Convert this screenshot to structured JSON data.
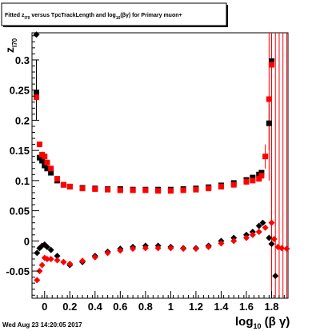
{
  "chart_data": {
    "type": "scatter",
    "title": {
      "prefix": "Fitted  z",
      "prefix_sub": "I70",
      "middle": " versus TpcTrackLength and log",
      "middle_sub": "10",
      "suffix": "(βγ) for Primary muon+"
    },
    "xlabel": {
      "main": "log",
      "sub": "10",
      "rest": " (β γ)"
    },
    "ylabel": {
      "main": "z",
      "sub": "I70"
    },
    "xlim": [
      -0.1,
      1.93
    ],
    "ylim": [
      -0.095,
      0.345
    ],
    "x_ticks": [
      0,
      0.2,
      0.4,
      0.6,
      0.8,
      1,
      1.2,
      1.4,
      1.6,
      1.8
    ],
    "x_tick_labels": [
      "0",
      "0.2",
      "0.4",
      "0.6",
      "0.8",
      "1",
      "1.2",
      "1.4",
      "1.6",
      "1.8"
    ],
    "y_ticks": [
      -0.05,
      0,
      0.05,
      0.1,
      0.15,
      0.2,
      0.25,
      0.3
    ],
    "y_tick_labels": [
      "-0.05",
      "0",
      "0.05",
      "0.1",
      "0.15",
      "0.2",
      "0.25",
      "0.3"
    ],
    "footer": "Wed Aug 23 14:20:05 2017",
    "colors": {
      "black": "#000000",
      "red": "#ff0000"
    },
    "series": [
      {
        "color": "black",
        "marker": "square",
        "points": [
          [
            -0.065,
            0.245
          ],
          [
            -0.04,
            0.138
          ],
          [
            -0.02,
            0.133
          ],
          [
            0.0,
            0.125
          ],
          [
            0.02,
            0.12
          ],
          [
            0.05,
            0.113
          ],
          [
            0.1,
            0.1
          ],
          [
            0.15,
            0.093
          ],
          [
            0.2,
            0.09
          ],
          [
            0.3,
            0.088
          ],
          [
            0.4,
            0.087
          ],
          [
            0.5,
            0.086
          ],
          [
            0.6,
            0.086
          ],
          [
            0.7,
            0.085
          ],
          [
            0.8,
            0.085
          ],
          [
            0.9,
            0.085
          ],
          [
            1.0,
            0.085
          ],
          [
            1.1,
            0.086
          ],
          [
            1.2,
            0.087
          ],
          [
            1.3,
            0.089
          ],
          [
            1.4,
            0.092
          ],
          [
            1.5,
            0.096
          ],
          [
            1.6,
            0.101
          ],
          [
            1.65,
            0.105
          ],
          [
            1.7,
            0.11
          ],
          [
            1.72,
            0.113
          ],
          [
            1.78,
            0.195
          ],
          [
            1.8,
            0.298
          ]
        ]
      },
      {
        "color": "red",
        "marker": "square",
        "points": [
          [
            -0.065,
            0.238
          ],
          [
            -0.04,
            0.16
          ],
          [
            -0.02,
            0.143
          ],
          [
            0.0,
            0.14
          ],
          [
            0.02,
            0.13
          ],
          [
            0.05,
            0.12
          ],
          [
            0.1,
            0.103
          ],
          [
            0.15,
            0.093
          ],
          [
            0.2,
            0.09
          ],
          [
            0.3,
            0.087
          ],
          [
            0.4,
            0.086
          ],
          [
            0.5,
            0.085
          ],
          [
            0.6,
            0.084
          ],
          [
            0.7,
            0.084
          ],
          [
            0.8,
            0.084
          ],
          [
            0.9,
            0.083
          ],
          [
            1.0,
            0.083
          ],
          [
            1.1,
            0.084
          ],
          [
            1.2,
            0.085
          ],
          [
            1.3,
            0.087
          ],
          [
            1.4,
            0.09
          ],
          [
            1.5,
            0.093
          ],
          [
            1.6,
            0.098
          ],
          [
            1.65,
            0.1
          ],
          [
            1.7,
            0.103
          ],
          [
            1.72,
            0.108
          ],
          [
            1.75,
            0.14
          ],
          [
            1.78,
            0.235
          ],
          [
            1.8,
            0.292
          ]
        ]
      },
      {
        "color": "black",
        "marker": "diamond",
        "points": [
          [
            -0.065,
            0.342
          ],
          [
            -0.06,
            -0.02
          ],
          [
            -0.04,
            -0.012
          ],
          [
            -0.02,
            -0.008
          ],
          [
            0.0,
            -0.006
          ],
          [
            0.02,
            -0.01
          ],
          [
            0.05,
            -0.015
          ],
          [
            0.1,
            -0.025
          ],
          [
            0.15,
            -0.035
          ],
          [
            0.2,
            -0.04
          ],
          [
            0.3,
            -0.035
          ],
          [
            0.4,
            -0.025
          ],
          [
            0.5,
            -0.018
          ],
          [
            0.6,
            -0.013
          ],
          [
            0.7,
            -0.01
          ],
          [
            0.8,
            -0.008
          ],
          [
            0.9,
            -0.008
          ],
          [
            1.0,
            -0.01
          ],
          [
            1.1,
            -0.012
          ],
          [
            1.2,
            -0.012
          ],
          [
            1.3,
            -0.008
          ],
          [
            1.4,
            0.0
          ],
          [
            1.5,
            0.005
          ],
          [
            1.6,
            0.01
          ],
          [
            1.65,
            0.015
          ],
          [
            1.7,
            0.025
          ],
          [
            1.73,
            0.03
          ],
          [
            1.78,
            0.005
          ],
          [
            1.8,
            -0.005
          ],
          [
            1.83,
            -0.058
          ]
        ]
      },
      {
        "color": "red",
        "marker": "diamond",
        "points": [
          [
            -0.06,
            -0.065
          ],
          [
            -0.04,
            -0.05
          ],
          [
            -0.02,
            -0.04
          ],
          [
            0.0,
            -0.028
          ],
          [
            0.02,
            -0.03
          ],
          [
            0.05,
            -0.03
          ],
          [
            0.1,
            -0.032
          ],
          [
            0.15,
            -0.035
          ],
          [
            0.2,
            -0.038
          ],
          [
            0.3,
            -0.033
          ],
          [
            0.4,
            -0.027
          ],
          [
            0.5,
            -0.02
          ],
          [
            0.6,
            -0.016
          ],
          [
            0.7,
            -0.013
          ],
          [
            0.8,
            -0.012
          ],
          [
            0.9,
            -0.012
          ],
          [
            1.0,
            -0.012
          ],
          [
            1.1,
            -0.013
          ],
          [
            1.2,
            -0.013
          ],
          [
            1.3,
            -0.01
          ],
          [
            1.4,
            -0.004
          ],
          [
            1.5,
            0.0
          ],
          [
            1.6,
            0.005
          ],
          [
            1.65,
            0.01
          ],
          [
            1.7,
            0.015
          ],
          [
            1.75,
            0.022
          ],
          [
            1.8,
            0.03
          ],
          [
            1.82,
            0.003
          ],
          [
            1.85,
            -0.01
          ],
          [
            1.88,
            -0.012
          ],
          [
            1.92,
            -0.013
          ]
        ]
      }
    ],
    "error_bars": [
      {
        "color": "black",
        "x": -0.065,
        "low": 0.2,
        "high": 0.3
      },
      {
        "color": "black",
        "x": 1.8,
        "low": 0.16,
        "high": 0.345
      },
      {
        "color": "black",
        "x": 1.78,
        "low": 0.15,
        "high": 0.23
      },
      {
        "color": "red",
        "x": 1.78,
        "low": 0.1,
        "high": 0.345
      },
      {
        "color": "red",
        "x": 1.8,
        "low": -0.095,
        "high": 0.345
      },
      {
        "color": "red",
        "x": 1.83,
        "low": -0.095,
        "high": 0.345
      },
      {
        "color": "red",
        "x": 1.86,
        "low": -0.095,
        "high": 0.345
      },
      {
        "color": "red",
        "x": 1.89,
        "low": -0.095,
        "high": 0.345
      },
      {
        "color": "red",
        "x": 1.92,
        "low": -0.095,
        "high": 0.345
      },
      {
        "color": "red",
        "x": 1.75,
        "low": 0.12,
        "high": 0.16
      }
    ]
  }
}
